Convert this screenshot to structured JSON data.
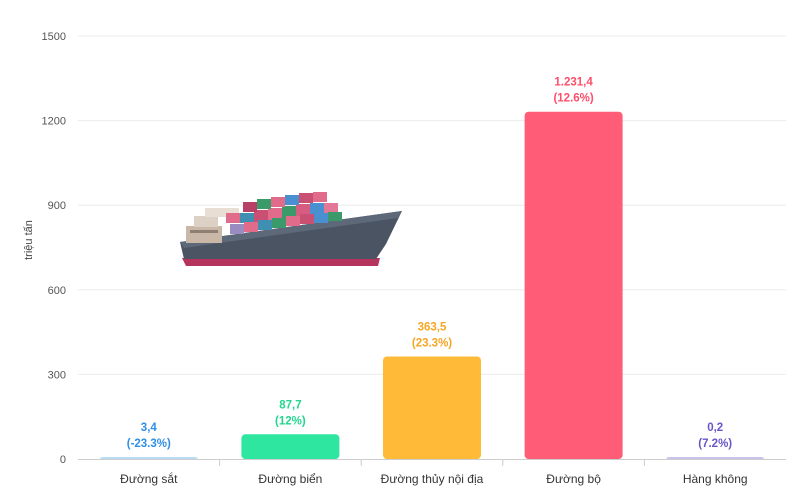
{
  "chart_data": {
    "type": "bar",
    "ylabel": "triệu tấn",
    "ylim": [
      0,
      1500
    ],
    "yticks": [
      0,
      300,
      600,
      900,
      1200,
      1500
    ],
    "grid": true,
    "legend": "none",
    "categories": [
      "Đường sắt",
      "Đường biển",
      "Đường thủy nội địa",
      "Đường bộ",
      "Hàng không"
    ],
    "values": [
      3.4,
      87.7,
      363.5,
      1231.4,
      0.2
    ],
    "value_labels": [
      "3,4",
      "87,7",
      "363,5",
      "1.231,4",
      "0,2"
    ],
    "change_labels": [
      "(-23.3%)",
      "(12%)",
      "(23.3%)",
      "(12.6%)",
      "(7.2%)"
    ],
    "colors": [
      "#b9dcf2",
      "#2ee6a0",
      "#ffbb38",
      "#ff5c77",
      "#c9c3ec"
    ],
    "label_colors": [
      "#2f8fe6",
      "#22d68e",
      "#f5a623",
      "#ff4d6a",
      "#6a55c8"
    ],
    "illustration": "cargo-ship-icon"
  }
}
